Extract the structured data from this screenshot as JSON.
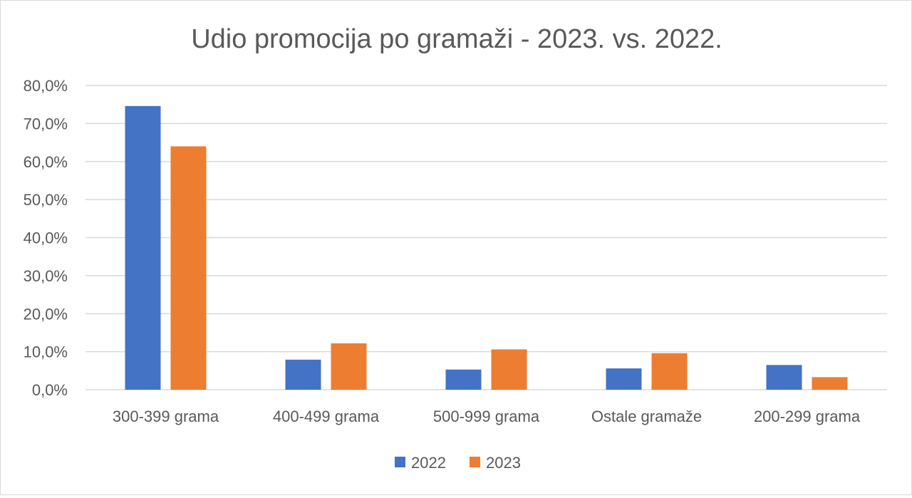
{
  "chart_data": {
    "type": "bar",
    "title": "Udio promocija po gramaži - 2023. vs. 2022.",
    "xlabel": "",
    "ylabel": "",
    "categories": [
      "300-399 grama",
      "400-499 grama",
      "500-999 grama",
      "Ostale gramaže",
      "200-299 grama"
    ],
    "series": [
      {
        "name": "2022",
        "color": "#4472c4",
        "values": [
          74.6,
          7.9,
          5.3,
          5.6,
          6.5
        ]
      },
      {
        "name": "2023",
        "color": "#ed7d31",
        "values": [
          64.0,
          12.2,
          10.6,
          9.6,
          3.3
        ]
      }
    ],
    "ylim": [
      0,
      80
    ],
    "ytick_values": [
      0,
      10,
      20,
      30,
      40,
      50,
      60,
      70,
      80
    ],
    "ytick_labels": [
      "0,0%",
      "10,0%",
      "20,0%",
      "30,0%",
      "40,0%",
      "50,0%",
      "60,0%",
      "70,0%",
      "80,0%"
    ],
    "grid": true,
    "legend_position": "bottom"
  }
}
